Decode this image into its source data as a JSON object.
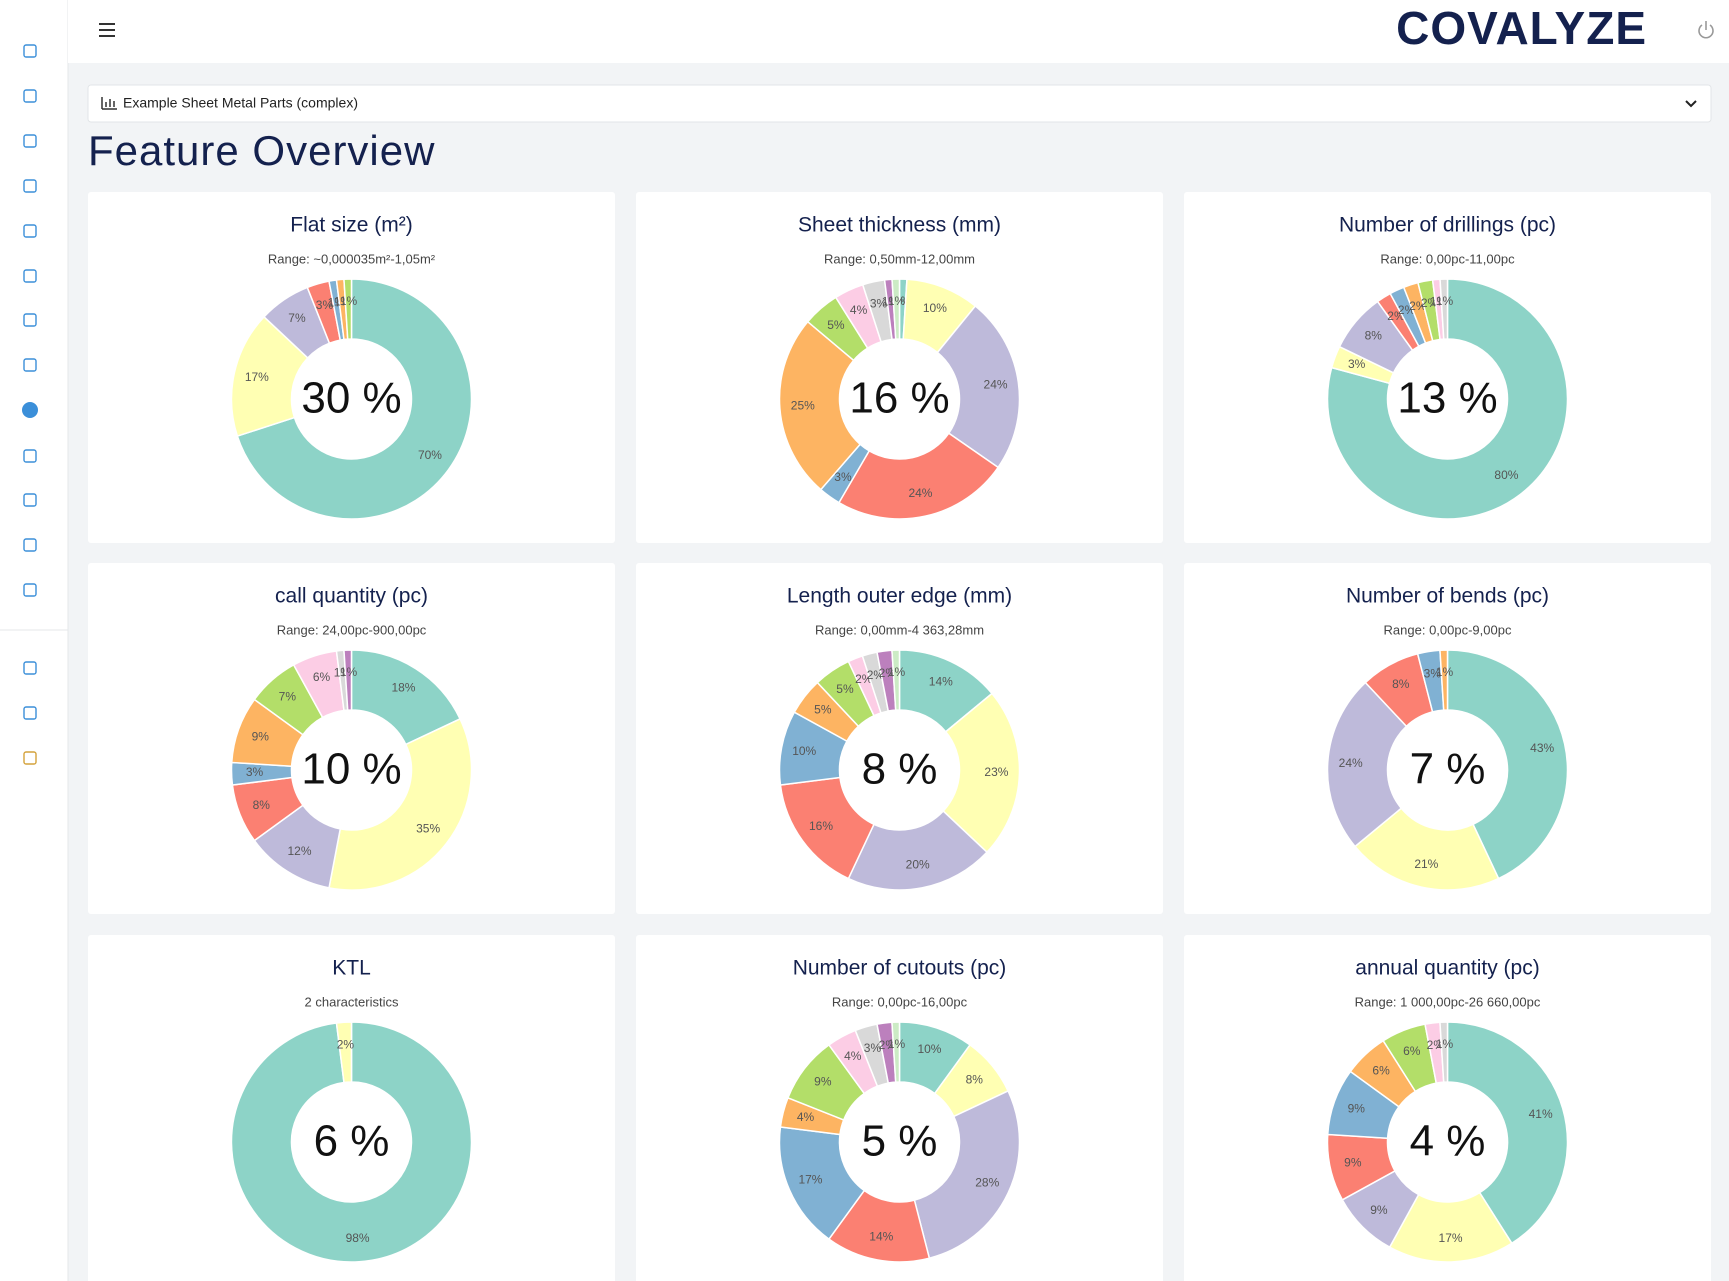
{
  "header": {
    "logo": "COVALYZE"
  },
  "selector": {
    "label": "Example Sheet Metal Parts (complex)"
  },
  "page_title": "Feature Overview",
  "chart_data": [
    {
      "type": "pie",
      "title": "Flat size (m²)",
      "subtitle": "Range: ~0,000035m²-1,05m²",
      "center_label": "30 %",
      "values": [
        70,
        17,
        7,
        3,
        1,
        1,
        1
      ],
      "value_labels": [
        "70%",
        "17%",
        "7%",
        "3%",
        "1%",
        "1%",
        "1%"
      ],
      "colors": [
        "#8dd3c7",
        "#ffffb3",
        "#bebada",
        "#fb8072",
        "#80b1d3",
        "#fdb462",
        "#b3de69"
      ]
    },
    {
      "type": "pie",
      "title": "Sheet thickness (mm)",
      "subtitle": "Range: 0,50mm-12,00mm",
      "center_label": "16 %",
      "values": [
        1,
        10,
        24,
        24,
        3,
        25,
        5,
        4,
        3,
        1,
        1
      ],
      "value_labels": [
        "1%",
        "10%",
        "24%",
        "24%",
        "3%",
        "25%",
        "5%",
        "4%",
        "3%",
        "1%",
        "1%"
      ],
      "colors": [
        "#8dd3c7",
        "#ffffb3",
        "#bebada",
        "#fb8072",
        "#80b1d3",
        "#fdb462",
        "#b3de69",
        "#fccde5",
        "#d9d9d9",
        "#bc80bd",
        "#ccebc5"
      ]
    },
    {
      "type": "pie",
      "title": "Number of drillings (pc)",
      "subtitle": "Range: 0,00pc-11,00pc",
      "center_label": "13 %",
      "values": [
        80,
        3,
        8,
        2,
        2,
        2,
        2,
        1,
        1
      ],
      "value_labels": [
        "80%",
        "3%",
        "8%",
        "2%",
        "2%",
        "2%",
        "2%",
        "1%",
        "1%"
      ],
      "colors": [
        "#8dd3c7",
        "#ffffb3",
        "#bebada",
        "#fb8072",
        "#80b1d3",
        "#fdb462",
        "#b3de69",
        "#fccde5",
        "#d9d9d9"
      ]
    },
    {
      "type": "pie",
      "title": "call quantity (pc)",
      "subtitle": "Range: 24,00pc-900,00pc",
      "center_label": "10 %",
      "values": [
        18,
        35,
        12,
        8,
        3,
        9,
        7,
        6,
        1,
        1
      ],
      "value_labels": [
        "18%",
        "35%",
        "12%",
        "8%",
        "3%",
        "9%",
        "7%",
        "6%",
        "1%",
        "1%"
      ],
      "colors": [
        "#8dd3c7",
        "#ffffb3",
        "#bebada",
        "#fb8072",
        "#80b1d3",
        "#fdb462",
        "#b3de69",
        "#fccde5",
        "#d9d9d9",
        "#bc80bd"
      ]
    },
    {
      "type": "pie",
      "title": "Length outer edge (mm)",
      "subtitle": "Range: 0,00mm-4 363,28mm",
      "center_label": "8 %",
      "values": [
        14,
        23,
        20,
        16,
        10,
        5,
        5,
        2,
        2,
        2,
        1
      ],
      "value_labels": [
        "14%",
        "23%",
        "20%",
        "16%",
        "10%",
        "5%",
        "5%",
        "2%",
        "2%",
        "2%",
        "1%"
      ],
      "colors": [
        "#8dd3c7",
        "#ffffb3",
        "#bebada",
        "#fb8072",
        "#80b1d3",
        "#fdb462",
        "#b3de69",
        "#fccde5",
        "#d9d9d9",
        "#bc80bd",
        "#ccebc5"
      ]
    },
    {
      "type": "pie",
      "title": "Number of bends (pc)",
      "subtitle": "Range: 0,00pc-9,00pc",
      "center_label": "7 %",
      "values": [
        43,
        21,
        24,
        8,
        3,
        1
      ],
      "value_labels": [
        "43%",
        "21%",
        "24%",
        "8%",
        "3%",
        "1%"
      ],
      "colors": [
        "#8dd3c7",
        "#ffffb3",
        "#bebada",
        "#fb8072",
        "#80b1d3",
        "#fdb462"
      ]
    },
    {
      "type": "pie",
      "title": "KTL",
      "subtitle": "2 characteristics",
      "center_label": "6 %",
      "values": [
        98,
        2
      ],
      "value_labels": [
        "98%",
        "2%"
      ],
      "colors": [
        "#8dd3c7",
        "#ffffb3"
      ]
    },
    {
      "type": "pie",
      "title": "Number of cutouts (pc)",
      "subtitle": "Range: 0,00pc-16,00pc",
      "center_label": "5 %",
      "values": [
        10,
        8,
        28,
        14,
        17,
        4,
        9,
        4,
        3,
        2,
        1
      ],
      "value_labels": [
        "10%",
        "8%",
        "28%",
        "14%",
        "17%",
        "4%",
        "9%",
        "4%",
        "3%",
        "2%",
        "1%"
      ],
      "colors": [
        "#8dd3c7",
        "#ffffb3",
        "#bebada",
        "#fb8072",
        "#80b1d3",
        "#fdb462",
        "#b3de69",
        "#fccde5",
        "#d9d9d9",
        "#bc80bd",
        "#ccebc5"
      ]
    },
    {
      "type": "pie",
      "title": "annual quantity (pc)",
      "subtitle": "Range: 1 000,00pc-26 660,00pc",
      "center_label": "4 %",
      "values": [
        41,
        17,
        9,
        9,
        9,
        6,
        6,
        2,
        1
      ],
      "value_labels": [
        "41%",
        "17%",
        "9%",
        "9%",
        "9%",
        "6%",
        "6%",
        "2%",
        "1%"
      ],
      "colors": [
        "#8dd3c7",
        "#ffffb3",
        "#bebada",
        "#fb8072",
        "#80b1d3",
        "#fdb462",
        "#b3de69",
        "#fccde5",
        "#d9d9d9"
      ]
    }
  ]
}
